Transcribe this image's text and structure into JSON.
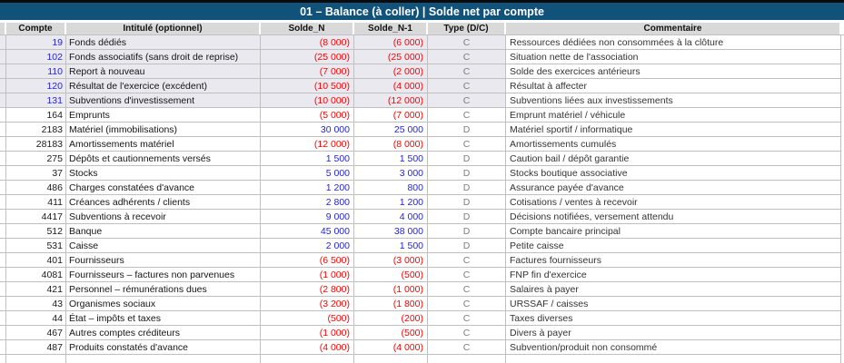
{
  "title": "01 – Balance (à coller) | Solde net par compte",
  "columns": [
    "Compte",
    "Intitulé (optionnel)",
    "Solde_N",
    "Solde_N-1",
    "Type (D/C)",
    "Commentaire"
  ],
  "colors": {
    "title_bg": "#10527A",
    "header_bg": "#D9D9D9",
    "highlight_row_bg": "#E9E9EF",
    "negative": "#FF0000",
    "positive": "#2222E0",
    "type_text": "#7F7F7F",
    "border": "#C0C0C0"
  },
  "rows": [
    {
      "compte": "19",
      "intitule": "Fonds dédiés",
      "solde_n": "(8 000)",
      "solde_n1": "(6 000)",
      "type": "C",
      "commentaire": "Ressources dédiées non consommées à la clôture",
      "highlight": true
    },
    {
      "compte": "102",
      "intitule": "Fonds associatifs (sans droit de reprise)",
      "solde_n": "(25 000)",
      "solde_n1": "(25 000)",
      "type": "C",
      "commentaire": "Situation nette de l'association",
      "highlight": true
    },
    {
      "compte": "110",
      "intitule": "Report à nouveau",
      "solde_n": "(7 000)",
      "solde_n1": "(2 000)",
      "type": "C",
      "commentaire": "Solde des exercices antérieurs",
      "highlight": true
    },
    {
      "compte": "120",
      "intitule": "Résultat de l'exercice (excédent)",
      "solde_n": "(10 500)",
      "solde_n1": "(4 000)",
      "type": "C",
      "commentaire": "Résultat à affecter",
      "highlight": true
    },
    {
      "compte": "131",
      "intitule": "Subventions d'investissement",
      "solde_n": "(10 000)",
      "solde_n1": "(12 000)",
      "type": "C",
      "commentaire": "Subventions liées aux investissements",
      "highlight": true
    },
    {
      "compte": "164",
      "intitule": "Emprunts",
      "solde_n": "(5 000)",
      "solde_n1": "(7 000)",
      "type": "C",
      "commentaire": "Emprunt matériel / véhicule",
      "highlight": false
    },
    {
      "compte": "2183",
      "intitule": "Matériel (immobilisations)",
      "solde_n": "30 000",
      "solde_n1": "25 000",
      "type": "D",
      "commentaire": "Matériel sportif / informatique",
      "highlight": false
    },
    {
      "compte": "28183",
      "intitule": "Amortissements matériel",
      "solde_n": "(12 000)",
      "solde_n1": "(8 000)",
      "type": "C",
      "commentaire": "Amortissements cumulés",
      "highlight": false
    },
    {
      "compte": "275",
      "intitule": "Dépôts et cautionnements versés",
      "solde_n": "1 500",
      "solde_n1": "1 500",
      "type": "D",
      "commentaire": "Caution bail / dépôt garantie",
      "highlight": false
    },
    {
      "compte": "37",
      "intitule": "Stocks",
      "solde_n": "5 000",
      "solde_n1": "3 000",
      "type": "D",
      "commentaire": "Stocks boutique associative",
      "highlight": false
    },
    {
      "compte": "486",
      "intitule": "Charges constatées d'avance",
      "solde_n": "1 200",
      "solde_n1": "800",
      "type": "D",
      "commentaire": "Assurance payée d'avance",
      "highlight": false
    },
    {
      "compte": "411",
      "intitule": "Créances adhérents / clients",
      "solde_n": "2 800",
      "solde_n1": "1 200",
      "type": "D",
      "commentaire": "Cotisations / ventes à recevoir",
      "highlight": false
    },
    {
      "compte": "4417",
      "intitule": "Subventions à recevoir",
      "solde_n": "9 000",
      "solde_n1": "4 000",
      "type": "D",
      "commentaire": "Décisions notifiées, versement attendu",
      "highlight": false
    },
    {
      "compte": "512",
      "intitule": "Banque",
      "solde_n": "45 000",
      "solde_n1": "38 000",
      "type": "D",
      "commentaire": "Compte bancaire principal",
      "highlight": false
    },
    {
      "compte": "531",
      "intitule": "Caisse",
      "solde_n": "2 000",
      "solde_n1": "1 500",
      "type": "D",
      "commentaire": "Petite caisse",
      "highlight": false
    },
    {
      "compte": "401",
      "intitule": "Fournisseurs",
      "solde_n": "(6 500)",
      "solde_n1": "(3 000)",
      "type": "C",
      "commentaire": "Factures fournisseurs",
      "highlight": false
    },
    {
      "compte": "4081",
      "intitule": "Fournisseurs – factures non parvenues",
      "solde_n": "(1 000)",
      "solde_n1": "(500)",
      "type": "C",
      "commentaire": "FNP fin d'exercice",
      "highlight": false
    },
    {
      "compte": "421",
      "intitule": "Personnel – rémunérations dues",
      "solde_n": "(2 800)",
      "solde_n1": "(1 000)",
      "type": "C",
      "commentaire": "Salaires à payer",
      "highlight": false
    },
    {
      "compte": "43",
      "intitule": "Organismes sociaux",
      "solde_n": "(3 200)",
      "solde_n1": "(1 800)",
      "type": "C",
      "commentaire": "URSSAF / caisses",
      "highlight": false
    },
    {
      "compte": "44",
      "intitule": "État – impôts et taxes",
      "solde_n": "(500)",
      "solde_n1": "(200)",
      "type": "C",
      "commentaire": "Taxes diverses",
      "highlight": false
    },
    {
      "compte": "467",
      "intitule": "Autres comptes créditeurs",
      "solde_n": "(1 000)",
      "solde_n1": "(500)",
      "type": "C",
      "commentaire": "Divers à payer",
      "highlight": false
    },
    {
      "compte": "487",
      "intitule": "Produits constatés d'avance",
      "solde_n": "(4 000)",
      "solde_n1": "(4 000)",
      "type": "C",
      "commentaire": "Subvention/produit non consommé",
      "highlight": false
    }
  ],
  "trailing_empty_row": true
}
